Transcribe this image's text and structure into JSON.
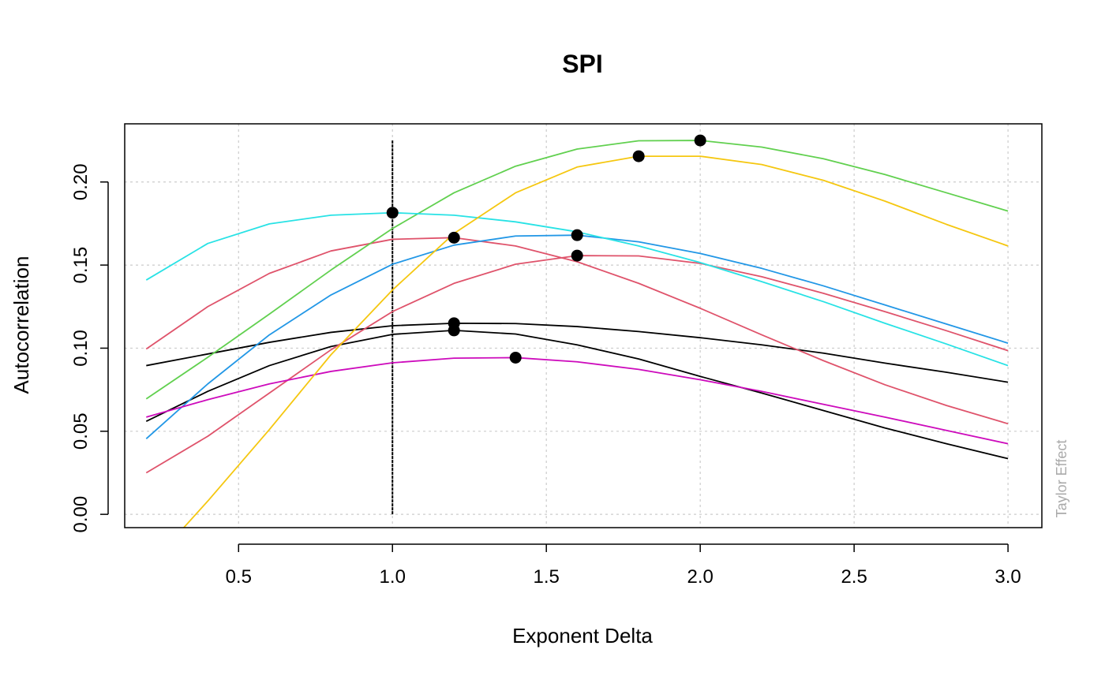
{
  "chart_data": {
    "type": "line",
    "title": "SPI",
    "xlabel": "Exponent Delta",
    "ylabel": "Autocorrelation",
    "side_note": "Taylor Effect",
    "xlim": [
      0.13,
      3.11
    ],
    "ylim": [
      -0.008,
      0.235
    ],
    "x_ticks": [
      0.5,
      1.0,
      1.5,
      2.0,
      2.5,
      3.0
    ],
    "x_tick_labels": [
      "0.5",
      "1.0",
      "1.5",
      "2.0",
      "2.5",
      "3.0"
    ],
    "y_ticks": [
      0.0,
      0.05,
      0.1,
      0.15,
      0.2
    ],
    "y_tick_labels": [
      "0.00",
      "0.05",
      "0.10",
      "0.15",
      "0.20"
    ],
    "grid": true,
    "grid_color": "#cccccc",
    "reference_line_x": 1.0,
    "x": [
      0.2,
      0.4,
      0.6,
      0.8,
      1.0,
      1.2,
      1.4,
      1.6,
      1.8,
      2.0,
      2.2,
      2.4,
      2.6,
      2.8,
      3.0
    ],
    "series": [
      {
        "color": "#000000",
        "values": [
          0.0895,
          0.0965,
          0.1035,
          0.1095,
          0.1135,
          0.115,
          0.1148,
          0.113,
          0.11,
          0.1063,
          0.102,
          0.097,
          0.091,
          0.0855,
          0.0795
        ],
        "max_x": 1.2,
        "max_y": 0.115
      },
      {
        "color": "#000000",
        "values": [
          0.056,
          0.074,
          0.0895,
          0.101,
          0.1083,
          0.1107,
          0.1085,
          0.102,
          0.0935,
          0.083,
          0.073,
          0.0625,
          0.052,
          0.0425,
          0.0335
        ],
        "max_x": 1.2,
        "max_y": 0.1107
      },
      {
        "color": "#df536b",
        "values": [
          0.0995,
          0.125,
          0.145,
          0.1585,
          0.1655,
          0.1665,
          0.1615,
          0.152,
          0.139,
          0.124,
          0.108,
          0.0925,
          0.078,
          0.0655,
          0.0545
        ],
        "max_x": 1.2,
        "max_y": 0.1665
      },
      {
        "color": "#df536b",
        "values": [
          0.025,
          0.047,
          0.073,
          0.099,
          0.122,
          0.139,
          0.1505,
          0.1557,
          0.1555,
          0.151,
          0.143,
          0.133,
          0.122,
          0.1105,
          0.0985
        ],
        "max_x": 1.6,
        "max_y": 0.1557
      },
      {
        "color": "#61d04f",
        "values": [
          0.0695,
          0.0945,
          0.1205,
          0.147,
          0.172,
          0.1935,
          0.2095,
          0.2198,
          0.2248,
          0.225,
          0.221,
          0.214,
          0.2045,
          0.1935,
          0.1825
        ],
        "max_x": 2.0,
        "max_y": 0.225
      },
      {
        "color": "#2297e6",
        "values": [
          0.0455,
          0.0785,
          0.108,
          0.132,
          0.1505,
          0.162,
          0.1675,
          0.168,
          0.164,
          0.157,
          0.148,
          0.1375,
          0.126,
          0.1145,
          0.103
        ],
        "max_x": 1.6,
        "max_y": 0.168
      },
      {
        "color": "#28e2e5",
        "values": [
          0.141,
          0.163,
          0.1748,
          0.18,
          0.1815,
          0.18,
          0.176,
          0.17,
          0.1615,
          0.1515,
          0.14,
          0.128,
          0.115,
          0.1025,
          0.0895
        ],
        "max_x": 1.0,
        "max_y": 0.1815
      },
      {
        "color": "#cd0bbc",
        "values": [
          0.0585,
          0.069,
          0.0785,
          0.086,
          0.0912,
          0.094,
          0.0943,
          0.0918,
          0.0872,
          0.081,
          0.074,
          0.0662,
          0.0585,
          0.0505,
          0.0425
        ],
        "max_x": 1.4,
        "max_y": 0.0943
      },
      {
        "color": "#f5c710",
        "values": [
          -0.033,
          0.008,
          0.051,
          0.096,
          0.135,
          0.169,
          0.1935,
          0.209,
          0.2155,
          0.2155,
          0.2105,
          0.201,
          0.1885,
          0.1745,
          0.1615
        ],
        "max_x": 1.8,
        "max_y": 0.2155
      }
    ]
  }
}
